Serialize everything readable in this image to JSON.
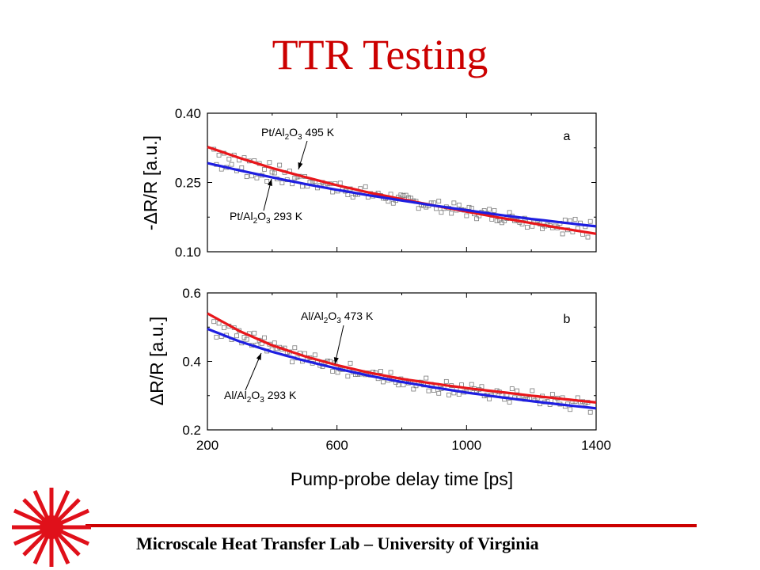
{
  "title": "TTR Testing",
  "footer": "Microscale Heat Transfer Lab – University of Virginia",
  "logo_icon": "laser-starburst",
  "colors": {
    "title": "#cc0000",
    "accent_line": "#cc0000",
    "series_hot": "#e8161b",
    "series_cold": "#1e1ee0",
    "markers": "#7a7a7a"
  },
  "chart_data": [
    {
      "type": "scatter",
      "panel_label": "a",
      "ylabel": "-ΔR/R [a.u.]",
      "xlabel": "",
      "xlim": [
        200,
        1400
      ],
      "ylim": [
        0.1,
        0.4
      ],
      "y_ticks": [
        "0.10",
        "0.25",
        "0.40"
      ],
      "x_ticks": [],
      "grid": false,
      "series": [
        {
          "name": "Pt/Al2O3 495 K",
          "label_main": "Pt/Al",
          "label_sub1": "2",
          "label_mid": "O",
          "label_sub2": "3",
          "label_tail": " 495 K",
          "color": "#e8161b",
          "x": [
            200,
            300,
            400,
            500,
            600,
            700,
            800,
            900,
            1000,
            1100,
            1200,
            1300,
            1400
          ],
          "y": [
            0.327,
            0.303,
            0.281,
            0.262,
            0.244,
            0.228,
            0.214,
            0.2,
            0.187,
            0.174,
            0.162,
            0.15,
            0.139
          ]
        },
        {
          "name": "Pt/Al2O3 293 K",
          "label_main": "Pt/Al",
          "label_sub1": "2",
          "label_mid": "O",
          "label_sub2": "3",
          "label_tail": " 293 K",
          "color": "#1e1ee0",
          "x": [
            200,
            300,
            400,
            500,
            600,
            700,
            800,
            900,
            1000,
            1100,
            1200,
            1300,
            1400
          ],
          "y": [
            0.292,
            0.276,
            0.261,
            0.247,
            0.234,
            0.222,
            0.211,
            0.2,
            0.19,
            0.18,
            0.171,
            0.163,
            0.155
          ]
        }
      ]
    },
    {
      "type": "scatter",
      "panel_label": "b",
      "ylabel": "ΔR/R [a.u.]",
      "xlabel": "Pump-probe delay time [ps]",
      "xlim": [
        200,
        1400
      ],
      "ylim": [
        0.2,
        0.6
      ],
      "y_ticks": [
        "0.2",
        "0.4",
        "0.6"
      ],
      "x_ticks": [
        "200",
        "600",
        "1000",
        "1400"
      ],
      "grid": false,
      "series": [
        {
          "name": "Al/Al2O3 473 K",
          "label_main": "Al/Al",
          "label_sub1": "2",
          "label_mid": "O",
          "label_sub2": "3",
          "label_tail": " 473 K",
          "color": "#e8161b",
          "x": [
            200,
            300,
            400,
            500,
            600,
            700,
            800,
            900,
            1000,
            1100,
            1200,
            1300,
            1400
          ],
          "y": [
            0.54,
            0.488,
            0.447,
            0.415,
            0.389,
            0.367,
            0.349,
            0.335,
            0.322,
            0.311,
            0.3,
            0.29,
            0.28
          ]
        },
        {
          "name": "Al/Al2O3 293 K",
          "label_main": "Al/Al",
          "label_sub1": "2",
          "label_mid": "O",
          "label_sub2": "3",
          "label_tail": " 293 K",
          "color": "#1e1ee0",
          "x": [
            200,
            300,
            400,
            500,
            600,
            700,
            800,
            900,
            1000,
            1100,
            1200,
            1300,
            1400
          ],
          "y": [
            0.495,
            0.458,
            0.428,
            0.402,
            0.379,
            0.358,
            0.34,
            0.324,
            0.309,
            0.296,
            0.284,
            0.273,
            0.263
          ]
        }
      ]
    }
  ]
}
